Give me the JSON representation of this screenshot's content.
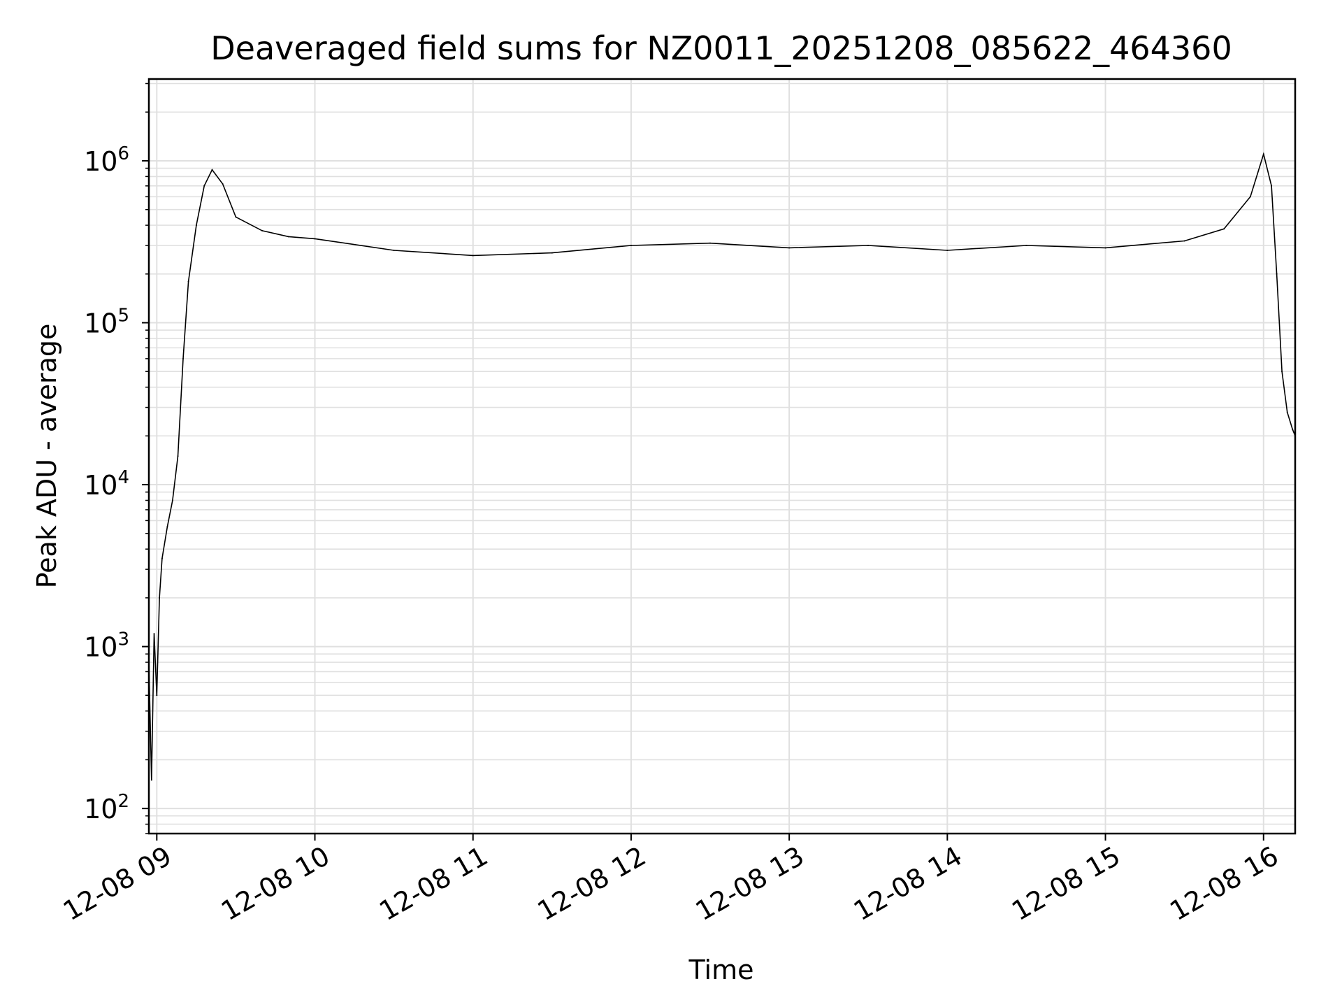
{
  "chart_data": {
    "type": "line",
    "title": "Deaveraged field sums for NZ0011_20251208_085622_464360",
    "xlabel": "Time",
    "ylabel": "Peak ADU - average",
    "yscale": "log",
    "grid": true,
    "xlim": [
      "2025-12-08 08:57",
      "2025-12-08 16:12"
    ],
    "ylim": [
      70,
      3200000
    ],
    "x_ticks": [
      "12-08 09",
      "12-08 10",
      "12-08 11",
      "12-08 12",
      "12-08 13",
      "12-08 14",
      "12-08 15",
      "12-08 16"
    ],
    "y_ticks": [
      {
        "base": "10",
        "exp": "2",
        "value": 100
      },
      {
        "base": "10",
        "exp": "3",
        "value": 1000
      },
      {
        "base": "10",
        "exp": "4",
        "value": 10000
      },
      {
        "base": "10",
        "exp": "5",
        "value": 100000
      },
      {
        "base": "10",
        "exp": "6",
        "value": 1000000
      }
    ],
    "line_color": "#000000",
    "grid_color": "#e0e0e0",
    "series": [
      {
        "x": [
          "2025-12-08 08:57",
          "2025-12-08 08:58",
          "2025-12-08 08:59",
          "2025-12-08 09:00",
          "2025-12-08 09:01",
          "2025-12-08 09:02",
          "2025-12-08 09:04",
          "2025-12-08 09:06",
          "2025-12-08 09:08",
          "2025-12-08 09:10",
          "2025-12-08 09:12",
          "2025-12-08 09:15",
          "2025-12-08 09:18",
          "2025-12-08 09:21",
          "2025-12-08 09:25",
          "2025-12-08 09:30",
          "2025-12-08 09:40",
          "2025-12-08 09:50",
          "2025-12-08 10:00",
          "2025-12-08 10:30",
          "2025-12-08 11:00",
          "2025-12-08 11:30",
          "2025-12-08 12:00",
          "2025-12-08 12:30",
          "2025-12-08 13:00",
          "2025-12-08 13:30",
          "2025-12-08 14:00",
          "2025-12-08 14:30",
          "2025-12-08 15:00",
          "2025-12-08 15:30",
          "2025-12-08 15:45",
          "2025-12-08 15:55",
          "2025-12-08 16:00",
          "2025-12-08 16:03",
          "2025-12-08 16:05",
          "2025-12-08 16:07",
          "2025-12-08 16:09",
          "2025-12-08 16:11",
          "2025-12-08 16:12"
        ],
        "y": [
          800,
          150,
          1200,
          500,
          2000,
          3500,
          5500,
          8000,
          15000,
          60000,
          180000,
          400000,
          700000,
          880000,
          720000,
          450000,
          370000,
          340000,
          330000,
          280000,
          260000,
          270000,
          300000,
          310000,
          290000,
          300000,
          280000,
          300000,
          290000,
          320000,
          380000,
          600000,
          1100000,
          700000,
          200000,
          50000,
          28000,
          22000,
          20000
        ]
      }
    ]
  }
}
